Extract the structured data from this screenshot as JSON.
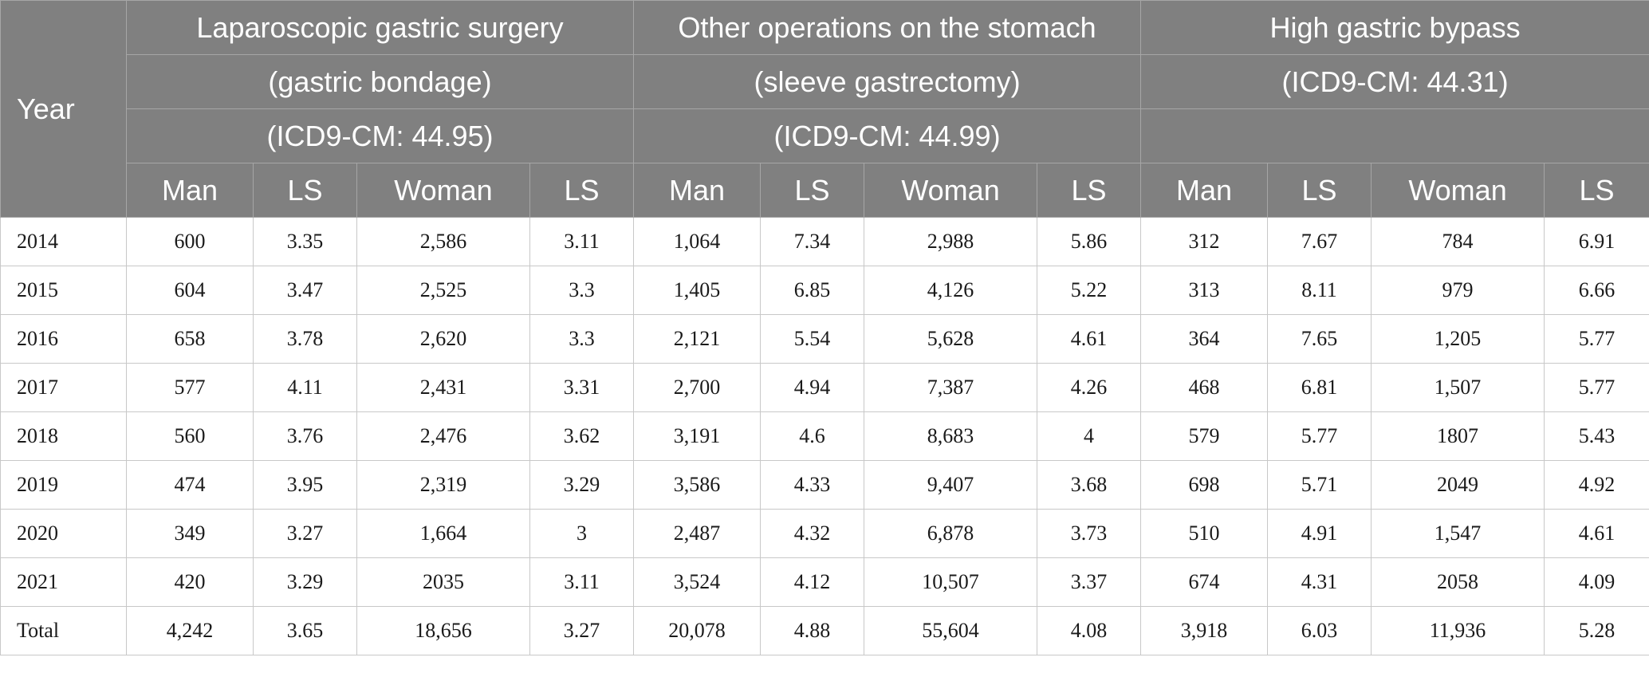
{
  "header": {
    "year": "Year",
    "groups": [
      {
        "line1": "Laparoscopic gastric surgery",
        "line2": "(gastric bondage)",
        "line3": "(ICD9-CM: 44.95)"
      },
      {
        "line1": "Other operations on the stomach",
        "line2": "(sleeve gastrectomy)",
        "line3": "(ICD9-CM: 44.99)"
      },
      {
        "line1": "High gastric bypass",
        "line2": "(ICD9-CM: 44.31)",
        "line3": ""
      }
    ],
    "subcols": [
      "Man",
      "LS",
      "Woman",
      "LS",
      "Man",
      "LS",
      "Woman",
      "LS",
      "Man",
      "LS",
      "Woman",
      "LS"
    ]
  },
  "rows": [
    [
      "2014",
      "600",
      "3.35",
      "2,586",
      "3.11",
      "1,064",
      "7.34",
      "2,988",
      "5.86",
      "312",
      "7.67",
      "784",
      "6.91"
    ],
    [
      "2015",
      "604",
      "3.47",
      "2,525",
      "3.3",
      "1,405",
      "6.85",
      "4,126",
      "5.22",
      "313",
      "8.11",
      "979",
      "6.66"
    ],
    [
      "2016",
      "658",
      "3.78",
      "2,620",
      "3.3",
      "2,121",
      "5.54",
      "5,628",
      "4.61",
      "364",
      "7.65",
      "1,205",
      "5.77"
    ],
    [
      "2017",
      "577",
      "4.11",
      "2,431",
      "3.31",
      "2,700",
      "4.94",
      "7,387",
      "4.26",
      "468",
      "6.81",
      "1,507",
      "5.77"
    ],
    [
      "2018",
      "560",
      "3.76",
      "2,476",
      "3.62",
      "3,191",
      "4.6",
      "8,683",
      "4",
      "579",
      "5.77",
      "1807",
      "5.43"
    ],
    [
      "2019",
      "474",
      "3.95",
      "2,319",
      "3.29",
      "3,586",
      "4.33",
      "9,407",
      "3.68",
      "698",
      "5.71",
      "2049",
      "4.92"
    ],
    [
      "2020",
      "349",
      "3.27",
      "1,664",
      "3",
      "2,487",
      "4.32",
      "6,878",
      "3.73",
      "510",
      "4.91",
      "1,547",
      "4.61"
    ],
    [
      "2021",
      "420",
      "3.29",
      "2035",
      "3.11",
      "3,524",
      "4.12",
      "10,507",
      "3.37",
      "674",
      "4.31",
      "2058",
      "4.09"
    ],
    [
      "Total",
      "4,242",
      "3.65",
      "18,656",
      "3.27",
      "20,078",
      "4.88",
      "55,604",
      "4.08",
      "3,918",
      "6.03",
      "11,936",
      "5.28"
    ]
  ]
}
